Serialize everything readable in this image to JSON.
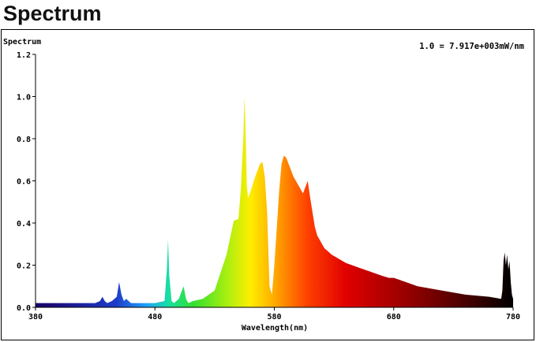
{
  "page": {
    "heading": "Spectrum"
  },
  "chart_data": {
    "type": "area",
    "title": "",
    "ylabel": "Spectrum",
    "xlabel": "Wavelength(nm)",
    "scale_note": "1.0 = 7.917e+003mW/nm",
    "xlim": [
      380,
      780
    ],
    "ylim": [
      0,
      1.2
    ],
    "x_ticks": [
      "380",
      "480",
      "580",
      "680",
      "780"
    ],
    "y_ticks": [
      "0.0",
      "0.2",
      "0.4",
      "0.6",
      "0.8",
      "1.0",
      "1.2"
    ],
    "grid": false,
    "fill": "wavelength-colored spectrum",
    "x": [
      380,
      390,
      400,
      410,
      420,
      430,
      434,
      436,
      438,
      440,
      444,
      448,
      450,
      452,
      454,
      456,
      460,
      466,
      470,
      480,
      488,
      490,
      491,
      492,
      494,
      496,
      500,
      504,
      506,
      508,
      512,
      520,
      530,
      540,
      546,
      550,
      552,
      554,
      555,
      556,
      557,
      558,
      560,
      564,
      568,
      570,
      572,
      574,
      576,
      578,
      580,
      584,
      586,
      588,
      590,
      596,
      600,
      604,
      606,
      608,
      610,
      612,
      614,
      616,
      618,
      620,
      622,
      624,
      628,
      634,
      640,
      650,
      660,
      670,
      676,
      680,
      690,
      700,
      720,
      740,
      760,
      770,
      771,
      772,
      773,
      774,
      775,
      776,
      777,
      778,
      779,
      780
    ],
    "y": [
      0.02,
      0.02,
      0.02,
      0.02,
      0.02,
      0.02,
      0.03,
      0.05,
      0.03,
      0.02,
      0.03,
      0.05,
      0.12,
      0.06,
      0.03,
      0.04,
      0.02,
      0.02,
      0.02,
      0.02,
      0.03,
      0.18,
      0.32,
      0.15,
      0.03,
      0.02,
      0.04,
      0.1,
      0.04,
      0.02,
      0.03,
      0.04,
      0.08,
      0.25,
      0.41,
      0.42,
      0.56,
      0.8,
      1.0,
      0.82,
      0.58,
      0.52,
      0.55,
      0.62,
      0.68,
      0.69,
      0.62,
      0.45,
      0.1,
      0.06,
      0.2,
      0.55,
      0.68,
      0.72,
      0.71,
      0.62,
      0.58,
      0.54,
      0.57,
      0.6,
      0.52,
      0.45,
      0.38,
      0.34,
      0.32,
      0.3,
      0.28,
      0.27,
      0.25,
      0.23,
      0.21,
      0.19,
      0.17,
      0.15,
      0.14,
      0.14,
      0.12,
      0.1,
      0.08,
      0.06,
      0.05,
      0.04,
      0.08,
      0.22,
      0.26,
      0.2,
      0.25,
      0.18,
      0.22,
      0.12,
      0.06,
      0.04
    ]
  }
}
